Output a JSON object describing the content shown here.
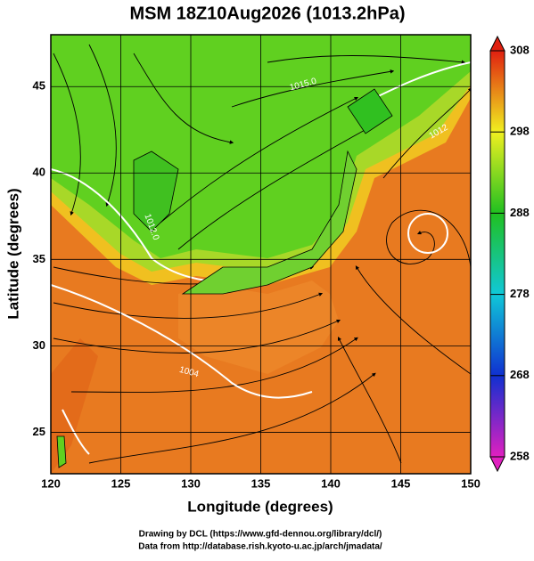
{
  "chart_data": {
    "type": "map",
    "title": "MSM 18Z10Aug2026 (1013.2hPa)",
    "xlabel": "Longitude (degrees)",
    "ylabel": "Latitude  (degrees)",
    "xlim": [
      120,
      150
    ],
    "ylim": [
      22.6,
      48
    ],
    "xticks": [
      120,
      125,
      130,
      135,
      140,
      145,
      150
    ],
    "yticks": [
      25,
      30,
      35,
      40,
      45
    ],
    "grid": true,
    "colorbar": {
      "lim": [
        258,
        308
      ],
      "ticks": [
        258,
        268,
        278,
        288,
        298,
        308
      ],
      "colors": [
        "#e020c0",
        "#1030d0",
        "#10c8d8",
        "#20c020",
        "#f0f020",
        "#e02010"
      ]
    },
    "contour_labels": [
      "1015.0",
      "1012.0",
      "1004",
      "1012"
    ],
    "credits": [
      "Drawing by DCL (https://www.gfd-dennou.org/library/dcl/)",
      "Data from http://database.rish.kyoto-u.ac.jp/arch/jmadata/"
    ]
  }
}
